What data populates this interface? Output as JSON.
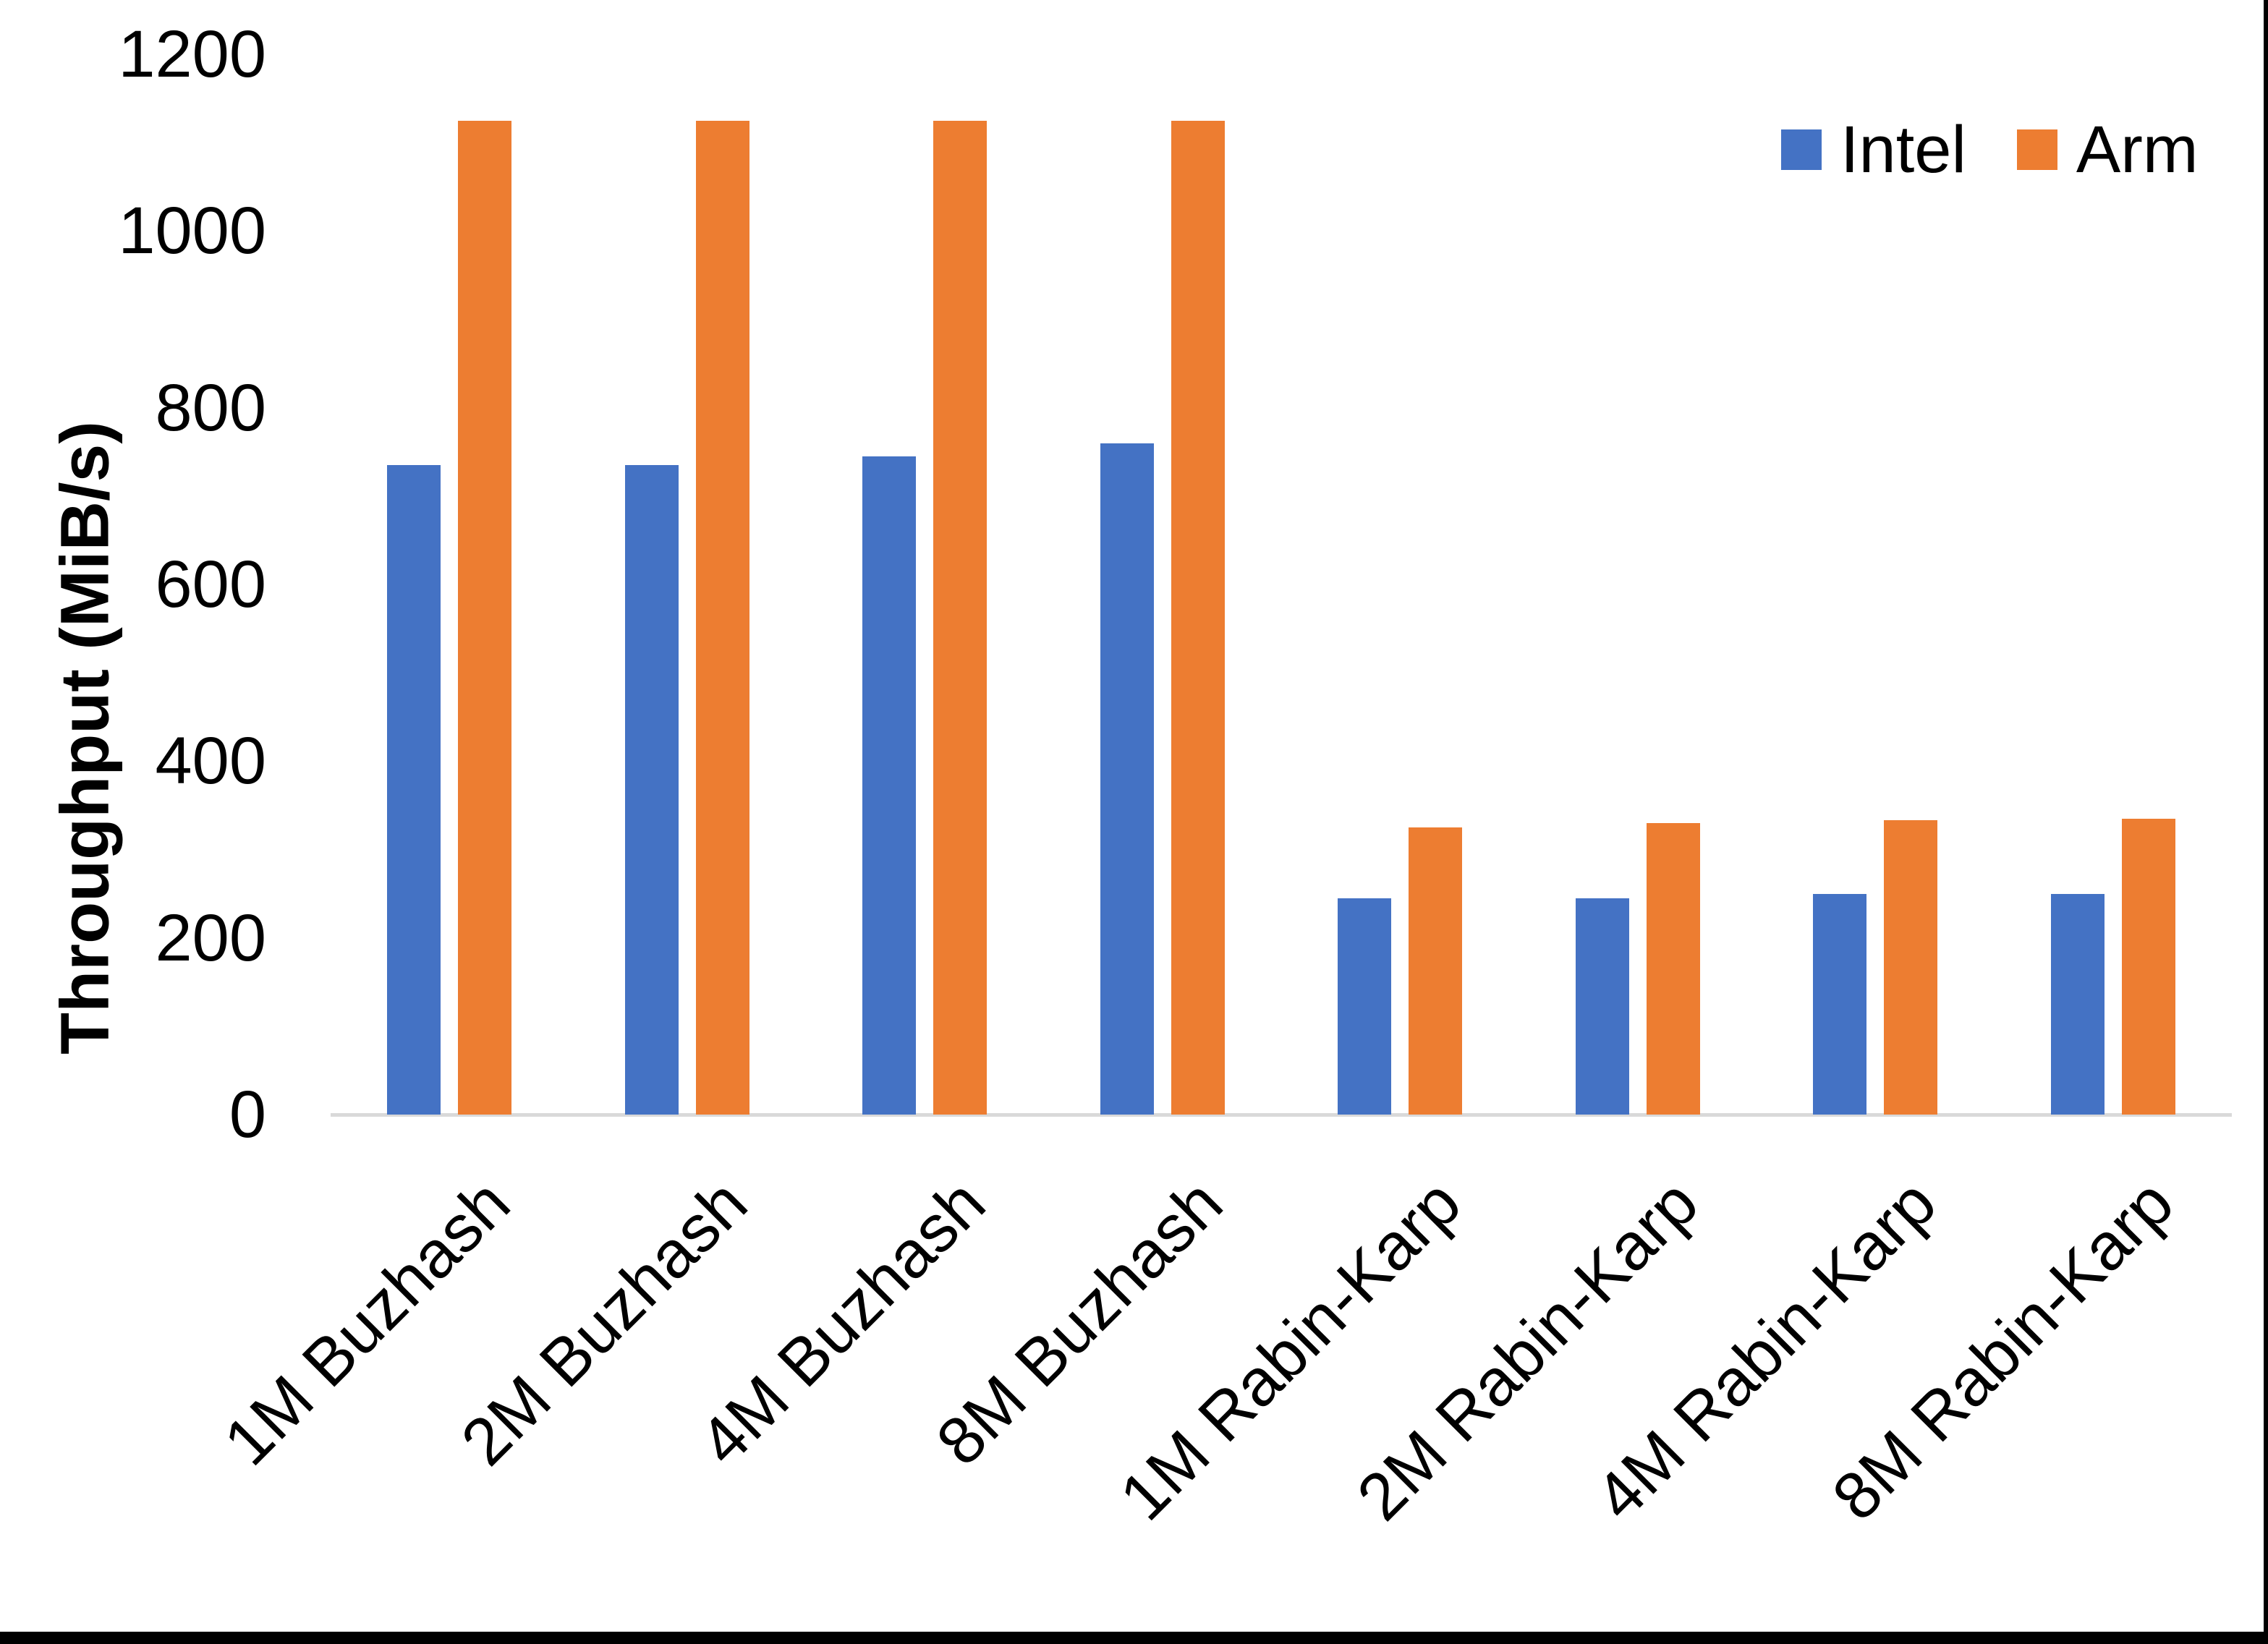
{
  "chart_data": {
    "type": "bar",
    "title": "",
    "ylabel": "Throughput (MiB/s)",
    "xlabel": "",
    "ylim": [
      0,
      1200
    ],
    "yticks": [
      0,
      200,
      400,
      600,
      800,
      1000,
      1200
    ],
    "grid": false,
    "legend_position": "top-right",
    "categories": [
      "1M Buzhash",
      "2M Buzhash",
      "4M Buzhash",
      "8M Buzhash",
      "1M Rabin-Karp",
      "2M Rabin-Karp",
      "4M Rabin-Karp",
      "8M Rabin-Karp"
    ],
    "series": [
      {
        "name": "Intel",
        "color": "#4472C4",
        "values": [
          735,
          735,
          745,
          760,
          245,
          245,
          250,
          250
        ]
      },
      {
        "name": "Arm",
        "color": "#ED7D31",
        "values": [
          1125,
          1125,
          1125,
          1125,
          325,
          330,
          333,
          335
        ]
      }
    ],
    "colors": {
      "axis_line": "#D9D9D9",
      "text": "#000000",
      "background": "#FFFFFF",
      "frame_border": "#000000"
    }
  }
}
